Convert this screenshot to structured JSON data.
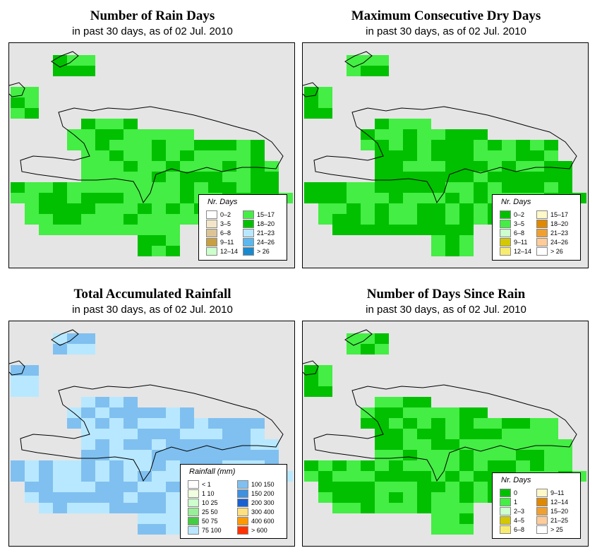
{
  "panels": [
    {
      "title": "Number of Rain Days",
      "subtitle": "in past 30 days, as of  02 Jul. 2010",
      "legend_title": "Nr. Days",
      "legend": [
        {
          "label": "0–2",
          "color": "#ffffff"
        },
        {
          "label": "3–5",
          "color": "#f3e6c8"
        },
        {
          "label": "6–8",
          "color": "#dcc494"
        },
        {
          "label": "9–11",
          "color": "#c8a040"
        },
        {
          "label": "12–14",
          "color": "#ccffcc"
        },
        {
          "label": "15–17",
          "color": "#44ee44"
        },
        {
          "label": "18–20",
          "color": "#00c000"
        },
        {
          "label": "21–23",
          "color": "#b8e8ff"
        },
        {
          "label": "24–26",
          "color": "#5ab8f0"
        },
        {
          "label": "> 26",
          "color": "#1a8ad0"
        }
      ]
    },
    {
      "title": "Maximum Consecutive Dry Days",
      "subtitle": "in past 30 days, as of  02 Jul. 2010",
      "legend_title": "Nr. Days",
      "legend": [
        {
          "label": "0–2",
          "color": "#00c000"
        },
        {
          "label": "3–5",
          "color": "#44ee44"
        },
        {
          "label": "6–8",
          "color": "#ccffcc"
        },
        {
          "label": "9–11",
          "color": "#d4c800"
        },
        {
          "label": "12–14",
          "color": "#f8ec70"
        },
        {
          "label": "15–17",
          "color": "#fff8c8"
        },
        {
          "label": "18–20",
          "color": "#e08800"
        },
        {
          "label": "21–23",
          "color": "#f0a030"
        },
        {
          "label": "24–26",
          "color": "#ffcc99"
        },
        {
          "label": "> 26",
          "color": "#ffffff"
        }
      ]
    },
    {
      "title": "Total Accumulated Rainfall",
      "subtitle": "in past 30 days, as of  02 Jul. 2010",
      "legend_title": "Rainfall (mm)",
      "legend": [
        {
          "label": "< 1",
          "color": "#ffffff"
        },
        {
          "label": "1   10",
          "color": "#f0ffe0"
        },
        {
          "label": "10   25",
          "color": "#ccffcc"
        },
        {
          "label": "25   50",
          "color": "#99ee99"
        },
        {
          "label": "50   75",
          "color": "#44cc44"
        },
        {
          "label": "75   100",
          "color": "#b8e8ff"
        },
        {
          "label": "100  150",
          "color": "#80c0f0"
        },
        {
          "label": "150  200",
          "color": "#4090e0"
        },
        {
          "label": "200  300",
          "color": "#1a60d0"
        },
        {
          "label": "300  400",
          "color": "#ffe080"
        },
        {
          "label": "400  600",
          "color": "#ff9900"
        },
        {
          "label": "> 600",
          "color": "#ff3300"
        }
      ]
    },
    {
      "title": "Number of Days Since Rain",
      "subtitle": "in past 30 days, as of  02 Jul. 2010",
      "legend_title": "Nr. Days",
      "legend": [
        {
          "label": "0",
          "color": "#00c000"
        },
        {
          "label": "1",
          "color": "#44ee44"
        },
        {
          "label": "2–3",
          "color": "#ccffcc"
        },
        {
          "label": "4–5",
          "color": "#d4c800"
        },
        {
          "label": "6–8",
          "color": "#f8ec70"
        },
        {
          "label": "9–11",
          "color": "#fff8c8"
        },
        {
          "label": "12–14",
          "color": "#e08800"
        },
        {
          "label": "15–20",
          "color": "#f0a030"
        },
        {
          "label": "21–25",
          "color": "#ffcc99"
        },
        {
          "label": "> 25",
          "color": "#ffffff"
        }
      ]
    }
  ]
}
